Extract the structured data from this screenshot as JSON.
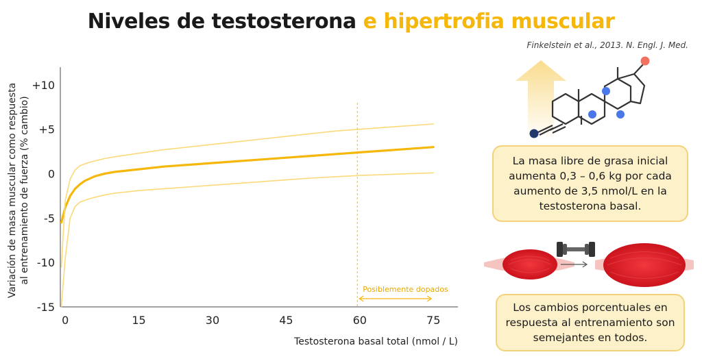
{
  "title": {
    "part1": "Niveles de testosterona ",
    "part2": "e hipertrofia muscular"
  },
  "citation": "Finkelstein et al., 2013. N. Engl. J. Med.",
  "info_box_1": "La masa libre de grasa inicial aumenta 0,3 – 0,6 kg por cada aumento de 3,5 nmol/L en la testosterona basal.",
  "info_box_2": "Los cambios porcentuales en respuesta al entrenamiento son semejantes en todos.",
  "colors": {
    "title_accent": "#f5b70a",
    "main_line": "#f5b70a",
    "ci_line": "#fbd97a",
    "box_fill": "#fdf1c9",
    "muscle": "#e31e26"
  },
  "icons": [
    "steroid-molecule-icon",
    "up-arrow-icon",
    "dumbbell-icon",
    "muscle-small-icon",
    "muscle-large-icon"
  ],
  "chart_data": {
    "type": "line",
    "xlabel": "Testosterona basal total (nmol / L)",
    "ylabel_line1": "Variación de masa muscular como respuesta",
    "ylabel_line2": "al entrenamiento de fuerza (% cambio)",
    "xlim": [
      -1,
      80
    ],
    "ylim": [
      -15,
      12
    ],
    "x_ticks": [
      0,
      15,
      30,
      45,
      60,
      75
    ],
    "y_ticks": [
      {
        "value": 10,
        "label": "+10"
      },
      {
        "value": 5,
        "label": "+5"
      },
      {
        "value": 0,
        "label": "0"
      },
      {
        "value": -5,
        "label": "-5"
      },
      {
        "value": -10,
        "label": "-10"
      },
      {
        "value": -15,
        "label": "-15"
      }
    ],
    "annotation": {
      "text": "Posiblemente dopados",
      "x_start": 59.5,
      "x_end": 75
    },
    "series": [
      {
        "role": "mean",
        "points": [
          [
            -0.8,
            -5.5
          ],
          [
            0,
            -3.8
          ],
          [
            1,
            -2.5
          ],
          [
            2,
            -1.7
          ],
          [
            3,
            -1.2
          ],
          [
            4,
            -0.8
          ],
          [
            6,
            -0.3
          ],
          [
            8,
            0
          ],
          [
            10,
            0.2
          ],
          [
            15,
            0.5
          ],
          [
            20,
            0.8
          ],
          [
            25,
            1.0
          ],
          [
            30,
            1.2
          ],
          [
            35,
            1.4
          ],
          [
            40,
            1.6
          ],
          [
            45,
            1.8
          ],
          [
            50,
            2.0
          ],
          [
            55,
            2.2
          ],
          [
            60,
            2.4
          ],
          [
            65,
            2.6
          ],
          [
            70,
            2.8
          ],
          [
            75,
            3.0
          ]
        ]
      },
      {
        "role": "upper",
        "points": [
          [
            -0.8,
            -10.5
          ],
          [
            0,
            -3.0
          ],
          [
            1,
            -0.6
          ],
          [
            2,
            0.4
          ],
          [
            3,
            0.9
          ],
          [
            5,
            1.3
          ],
          [
            8,
            1.7
          ],
          [
            10,
            1.9
          ],
          [
            15,
            2.3
          ],
          [
            20,
            2.7
          ],
          [
            25,
            3.0
          ],
          [
            30,
            3.3
          ],
          [
            35,
            3.6
          ],
          [
            40,
            3.9
          ],
          [
            45,
            4.2
          ],
          [
            50,
            4.5
          ],
          [
            55,
            4.8
          ],
          [
            60,
            5.0
          ],
          [
            65,
            5.2
          ],
          [
            70,
            5.4
          ],
          [
            75,
            5.6
          ]
        ]
      },
      {
        "role": "lower",
        "points": [
          [
            -0.8,
            -15
          ],
          [
            0,
            -9.5
          ],
          [
            1,
            -5.0
          ],
          [
            2,
            -3.7
          ],
          [
            3,
            -3.2
          ],
          [
            5,
            -2.8
          ],
          [
            8,
            -2.4
          ],
          [
            10,
            -2.2
          ],
          [
            15,
            -1.9
          ],
          [
            20,
            -1.7
          ],
          [
            25,
            -1.5
          ],
          [
            30,
            -1.3
          ],
          [
            35,
            -1.1
          ],
          [
            40,
            -0.9
          ],
          [
            45,
            -0.7
          ],
          [
            50,
            -0.5
          ],
          [
            55,
            -0.35
          ],
          [
            60,
            -0.2
          ],
          [
            65,
            -0.1
          ],
          [
            70,
            0
          ],
          [
            75,
            0.1
          ]
        ]
      }
    ]
  }
}
